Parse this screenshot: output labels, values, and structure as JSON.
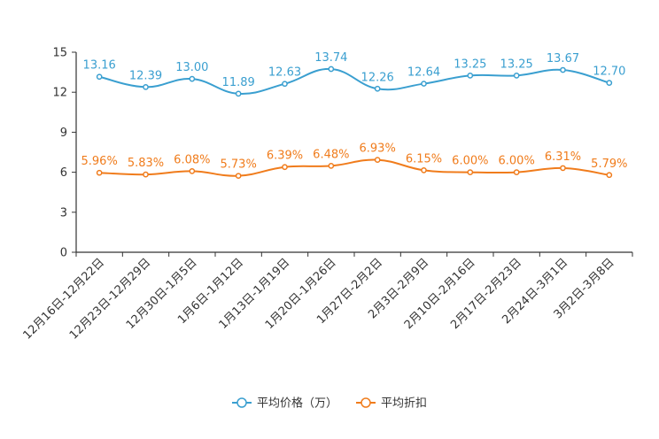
{
  "chart_data": {
    "type": "line",
    "categories": [
      "12月16日-12月22日",
      "12月23日-12月29日",
      "12月30日-1月5日",
      "1月6日-1月12日",
      "1月13日-1月19日",
      "1月20日-1月26日",
      "1月27日-2月2日",
      "2月3日-2月9日",
      "2月10日-2月16日",
      "2月17日-2月23日",
      "2月24日-3月1日",
      "3月2日-3月8日"
    ],
    "series": [
      {
        "name": "平均价格（万）",
        "color": "#3a9fd0",
        "values": [
          13.16,
          12.39,
          13.0,
          11.89,
          12.63,
          13.74,
          12.26,
          12.64,
          13.25,
          13.25,
          13.67,
          12.7
        ],
        "labels": [
          "13.16",
          "12.39",
          "13.00",
          "11.89",
          "12.63",
          "13.74",
          "12.26",
          "12.64",
          "13.25",
          "13.25",
          "13.67",
          "12.70"
        ]
      },
      {
        "name": "平均折扣",
        "color": "#f07c1c",
        "values": [
          5.96,
          5.83,
          6.08,
          5.73,
          6.39,
          6.48,
          6.93,
          6.15,
          6.0,
          6.0,
          6.31,
          5.79
        ],
        "labels": [
          "5.96%",
          "5.83%",
          "6.08%",
          "5.73%",
          "6.39%",
          "6.48%",
          "6.93%",
          "6.15%",
          "6.00%",
          "6.00%",
          "6.31%",
          "5.79%"
        ]
      }
    ],
    "yticks": [
      "0",
      "3",
      "6",
      "9",
      "12",
      "15"
    ],
    "ylim": [
      0,
      15
    ],
    "legend": "bottom-center",
    "grid": false
  }
}
